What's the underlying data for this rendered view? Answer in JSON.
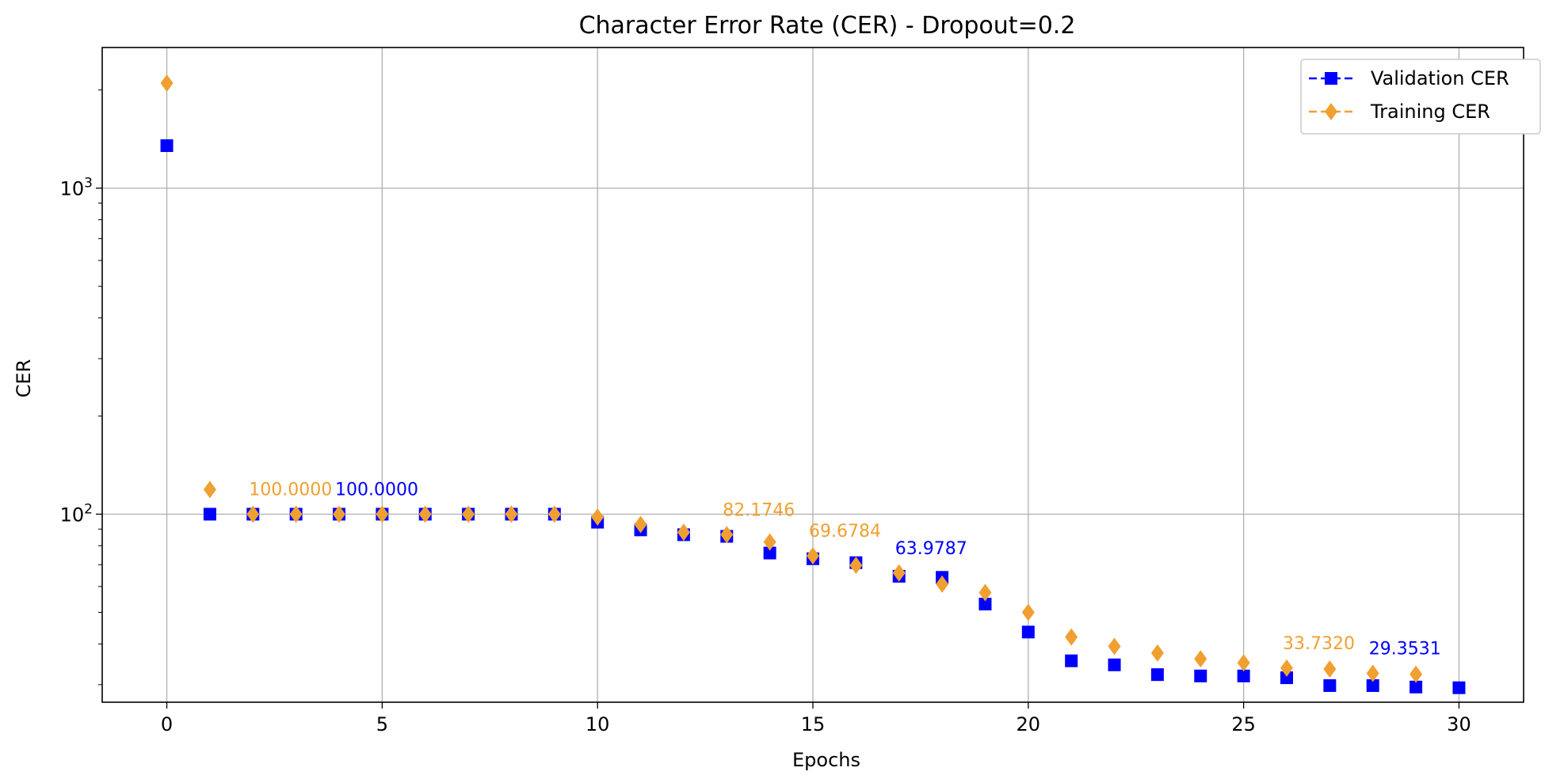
{
  "chart_data": {
    "type": "scatter",
    "title": "Character Error Rate (CER) - Dropout=0.2",
    "xlabel": "Epochs",
    "ylabel": "CER",
    "yscale": "log",
    "xlim": [
      -1.5,
      31.5
    ],
    "ylim": [
      26.5,
      2700
    ],
    "xticks": [
      0,
      5,
      10,
      15,
      20,
      25,
      30
    ],
    "xtick_labels": [
      "0",
      "5",
      "10",
      "15",
      "20",
      "25",
      "30"
    ],
    "yticks": [
      {
        "value": 100,
        "base": "10",
        "exp": "2"
      },
      {
        "value": 1000,
        "base": "10",
        "exp": "3"
      }
    ],
    "grid": true,
    "legend_position": "top-right",
    "series": [
      {
        "name": "Validation CER",
        "color": "#0000ff",
        "marker": "square",
        "x": [
          0,
          1,
          2,
          3,
          4,
          5,
          6,
          7,
          8,
          9,
          10,
          11,
          12,
          13,
          14,
          15,
          16,
          17,
          18,
          19,
          20,
          21,
          22,
          23,
          24,
          25,
          26,
          27,
          28,
          29,
          30
        ],
        "values": [
          1350,
          100,
          100,
          100,
          100,
          100,
          100,
          100,
          100,
          100,
          94.5,
          89.5,
          86.5,
          85.5,
          76,
          73,
          71,
          64.5,
          64,
          53,
          43.5,
          35.5,
          34.5,
          32.2,
          31.9,
          31.9,
          31.5,
          29.8,
          29.8,
          29.5,
          29.3531
        ]
      },
      {
        "name": "Training CER",
        "color": "#f0a030",
        "marker": "diamond",
        "x": [
          0,
          1,
          2,
          3,
          4,
          5,
          6,
          7,
          8,
          9,
          10,
          11,
          12,
          13,
          14,
          15,
          16,
          17,
          18,
          19,
          20,
          21,
          22,
          23,
          24,
          25,
          26,
          27,
          28,
          29
        ],
        "values": [
          2100,
          119,
          100,
          100,
          100,
          100,
          100,
          100,
          100,
          100,
          98,
          93,
          88,
          86.5,
          82.1746,
          74.5,
          69.6784,
          66,
          61,
          57.5,
          50,
          42,
          39.3,
          37.5,
          36,
          35,
          33.732,
          33.5,
          32.5,
          32.3
        ]
      }
    ],
    "annotations": [
      {
        "text": "100.0000",
        "x": 2,
        "y": 100,
        "series": 1
      },
      {
        "text": "100.0000",
        "x": 4,
        "y": 100,
        "series": 0
      },
      {
        "text": "82.1746",
        "x": 13,
        "y": 86.5,
        "series": 1
      },
      {
        "text": "69.6784",
        "x": 15,
        "y": 74.5,
        "series": 1
      },
      {
        "text": "63.9787",
        "x": 17,
        "y": 66,
        "series": 0
      },
      {
        "text": "33.7320",
        "x": 26,
        "y": 33.732,
        "series": 1
      },
      {
        "text": "29.3531",
        "x": 28,
        "y": 32.5,
        "series": 0
      }
    ]
  }
}
